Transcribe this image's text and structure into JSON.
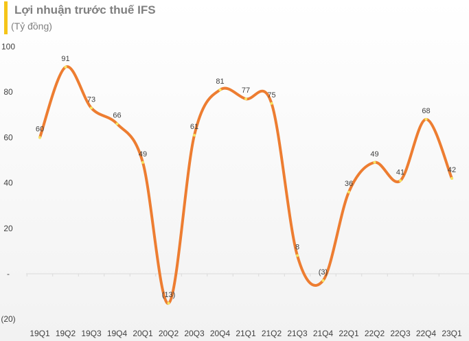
{
  "chart_data": {
    "type": "line",
    "title": "Lợi nhuận trước thuế IFS",
    "subtitle": "(Tỷ đồng)",
    "xlabel": "",
    "ylabel": "",
    "categories": [
      "19Q1",
      "19Q2",
      "19Q3",
      "19Q4",
      "20Q1",
      "20Q2",
      "20Q3",
      "20Q4",
      "21Q1",
      "21Q2",
      "21Q3",
      "21Q4",
      "22Q1",
      "22Q2",
      "22Q3",
      "22Q4",
      "23Q1"
    ],
    "series": [
      {
        "name": "Lợi nhuận trước thuế",
        "values": [
          60,
          91,
          73,
          66,
          49,
          -13,
          61,
          81,
          77,
          75,
          8,
          -3,
          36,
          49,
          41,
          68,
          42
        ]
      }
    ],
    "data_labels": [
      "60",
      "91",
      "73",
      "66",
      "49",
      "(13)",
      "61",
      "81",
      "77",
      "75",
      "8",
      "(3)",
      "36",
      "49",
      "41",
      "68",
      "42"
    ],
    "y_ticks": [
      100,
      80,
      60,
      40,
      20,
      0,
      -20
    ],
    "y_tick_labels": [
      "100",
      "80",
      "60",
      "40",
      "20",
      "-",
      "(20)"
    ],
    "ylim": [
      -20,
      100
    ],
    "grid": false,
    "smooth": true,
    "colors": {
      "line": "#ed7d31",
      "marker": "#f5e663",
      "accent_bar": "#f5c518",
      "text": "#404040"
    }
  }
}
